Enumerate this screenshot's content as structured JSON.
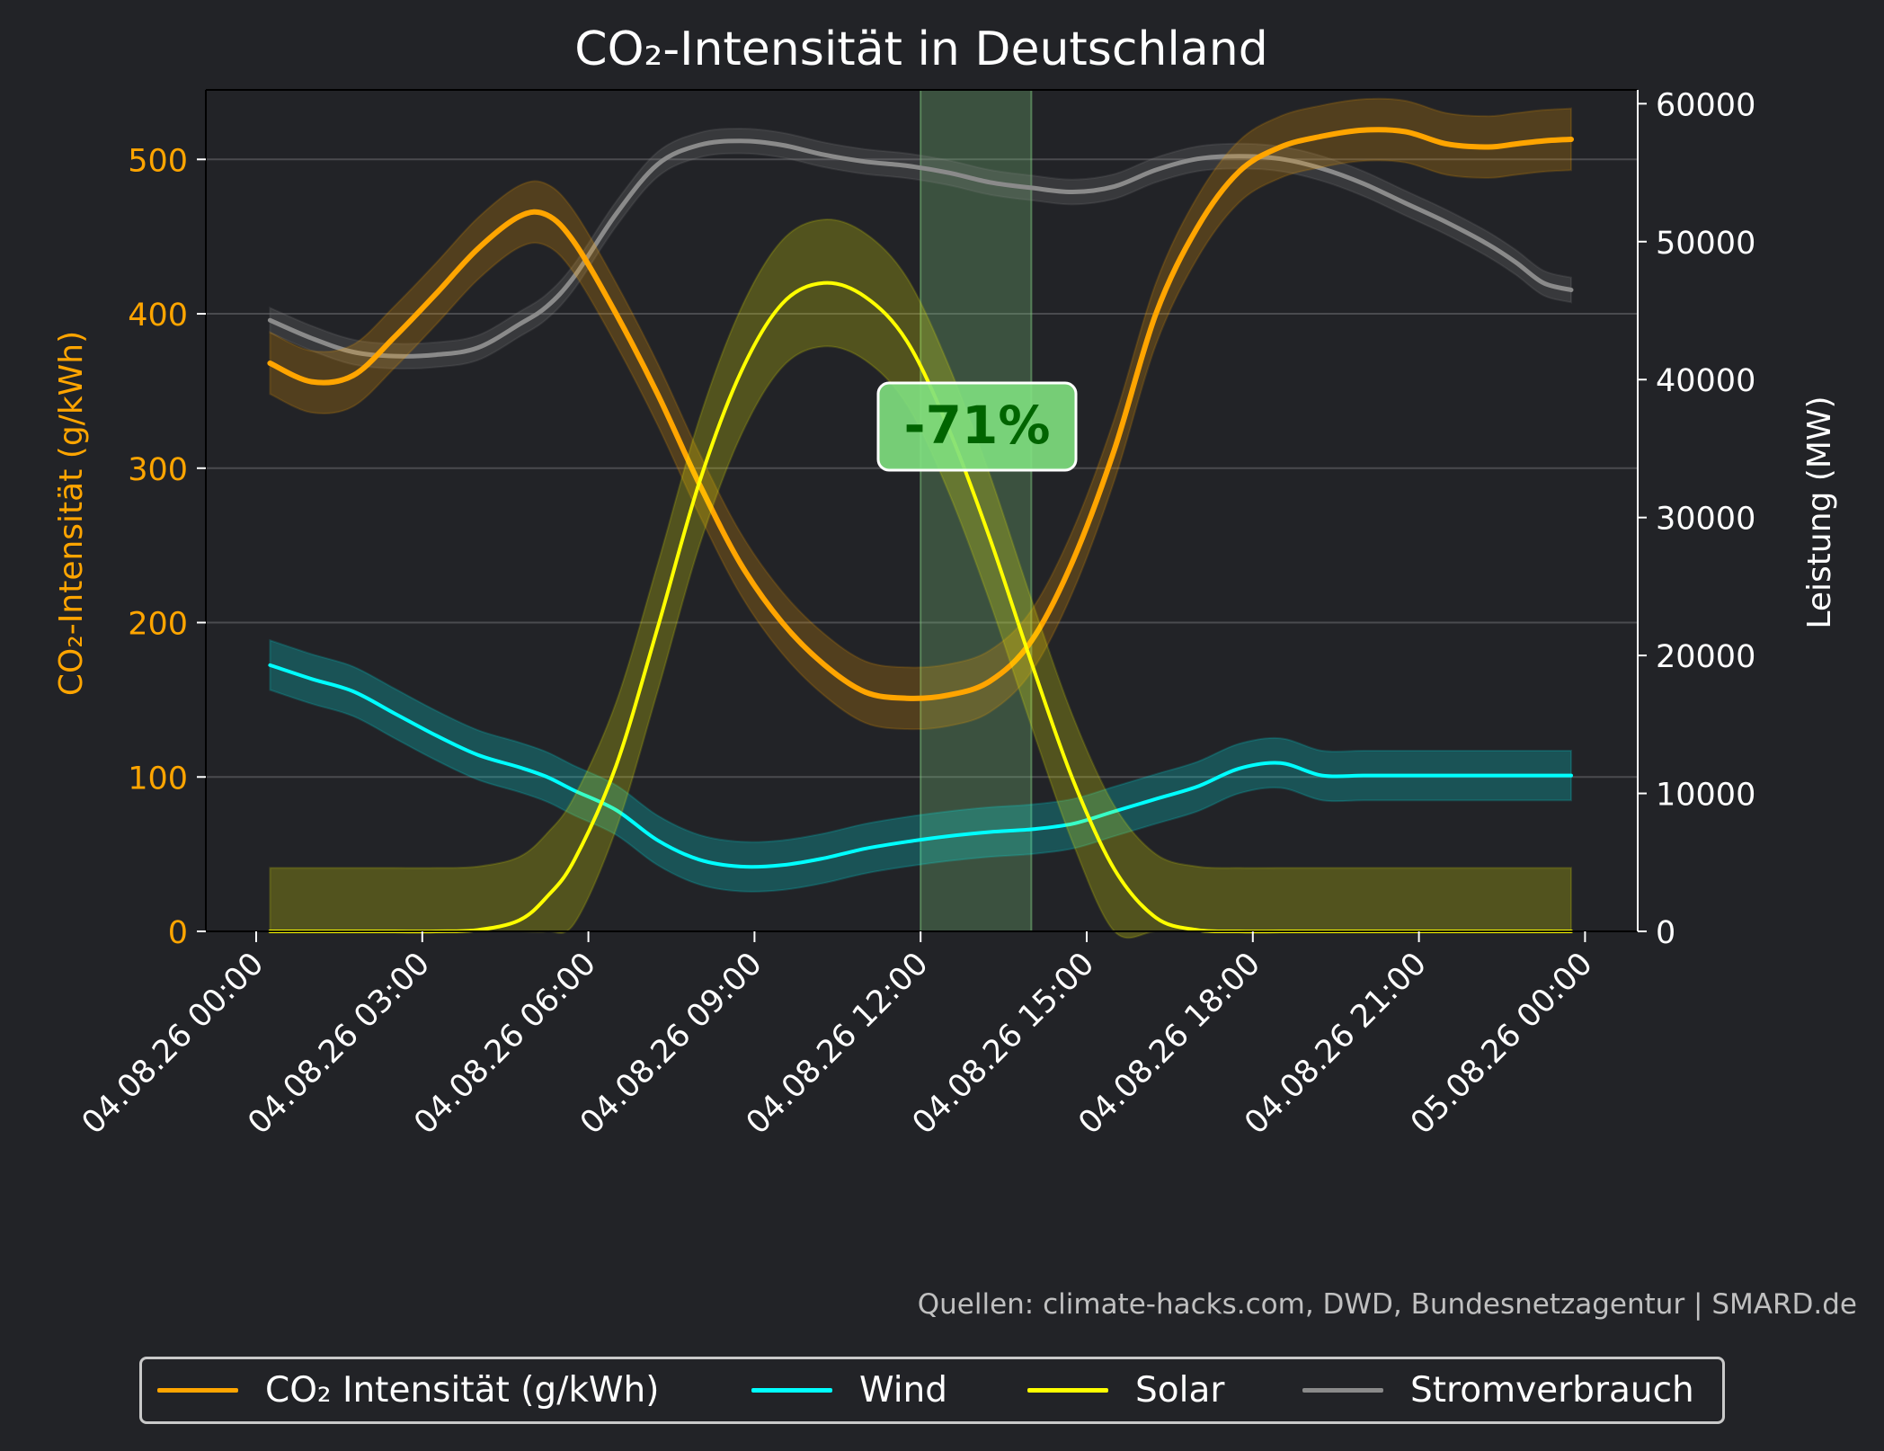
{
  "chart_data": {
    "type": "line",
    "title": "CO₂-Intensität in Deutschland",
    "ylabel_left": "CO₂-Intensität (g/kWh)",
    "ylabel_right": "Leistung (MW)",
    "ylim_left": [
      0,
      545
    ],
    "ylim_right": [
      0,
      61000
    ],
    "yticks_left": [
      0,
      100,
      200,
      300,
      400,
      500
    ],
    "yticks_right": [
      0,
      10000,
      20000,
      30000,
      40000,
      50000,
      60000
    ],
    "xlim": [
      "04.08.26 00:00",
      "05.08.26 00:00"
    ],
    "xticks": [
      "04.08.26 00:00",
      "04.08.26 03:00",
      "04.08.26 06:00",
      "04.08.26 09:00",
      "04.08.26 12:00",
      "04.08.26 15:00",
      "04.08.26 18:00",
      "04.08.26 21:00",
      "05.08.26 00:00"
    ],
    "grid": "horizontal",
    "x_hours": [
      0.25,
      1.0,
      1.75,
      2.5,
      3.25,
      4.0,
      4.75,
      5.25,
      5.75,
      6.5,
      7.25,
      8.0,
      8.75,
      9.5,
      10.25,
      11.0,
      11.75,
      12.5,
      13.25,
      14.0,
      14.75,
      15.5,
      16.25,
      17.0,
      17.75,
      18.5,
      19.25,
      20.0,
      20.75,
      21.5,
      22.25,
      22.75,
      23.25,
      23.75
    ],
    "series": [
      {
        "name": "CO₂ Intensität (g/kWh)",
        "axis": "left",
        "color": "#ffa500",
        "band": 20,
        "values": [
          368,
          356,
          360,
          385,
          413,
          442,
          463,
          464,
          446,
          400,
          348,
          290,
          238,
          200,
          173,
          155,
          151,
          153,
          162,
          188,
          240,
          312,
          400,
          456,
          492,
          508,
          515,
          519,
          518,
          510,
          508,
          510,
          512,
          513
        ]
      },
      {
        "name": "Wind",
        "axis": "right",
        "color": "#00ffff",
        "band": 1800,
        "values": [
          19300,
          18300,
          17400,
          15800,
          14200,
          12800,
          11900,
          11200,
          10200,
          8800,
          6600,
          5200,
          4700,
          4800,
          5300,
          6000,
          6500,
          6900,
          7200,
          7400,
          7800,
          8700,
          9600,
          10500,
          11800,
          12200,
          11300,
          11300,
          11300,
          11300,
          11300,
          11300,
          11300,
          11300
        ]
      },
      {
        "name": "Solar",
        "axis": "right",
        "color": "#ffff00",
        "band": 4600,
        "values": [
          0,
          0,
          0,
          0,
          0,
          100,
          800,
          2500,
          5200,
          12000,
          22000,
          32500,
          40500,
          45500,
          47000,
          46000,
          42800,
          36500,
          28500,
          19500,
          11000,
          4500,
          1000,
          100,
          0,
          0,
          0,
          0,
          0,
          0,
          0,
          0,
          0,
          0
        ]
      },
      {
        "name": "Stromverbrauch",
        "axis": "right",
        "color": "#8a8a8a",
        "band": 900,
        "values": [
          44300,
          43000,
          42000,
          41700,
          41800,
          42300,
          44000,
          45300,
          47500,
          52000,
          55600,
          57000,
          57300,
          57000,
          56300,
          55800,
          55500,
          55000,
          54300,
          53900,
          53600,
          54000,
          55200,
          56000,
          56200,
          56000,
          55300,
          54200,
          52800,
          51400,
          49800,
          48500,
          47000,
          46500
        ]
      }
    ],
    "highlight": {
      "x_start": "04.08.26 12:00",
      "x_end": "04.08.26 14:00",
      "color": "#7ec87e"
    },
    "annotation": {
      "text": "-71%",
      "x": "04.08.26 13:00",
      "y_left": 325
    },
    "source": "Quellen: climate-hacks.com, DWD, Bundesnetzagentur | SMARD.de",
    "legend_position": "bottom-center",
    "colors": {
      "background": "#222327",
      "grid": "#4a4b4f",
      "left_axis": "#ffa500",
      "text": "#ffffff",
      "source_text": "#c0c0c0"
    }
  }
}
